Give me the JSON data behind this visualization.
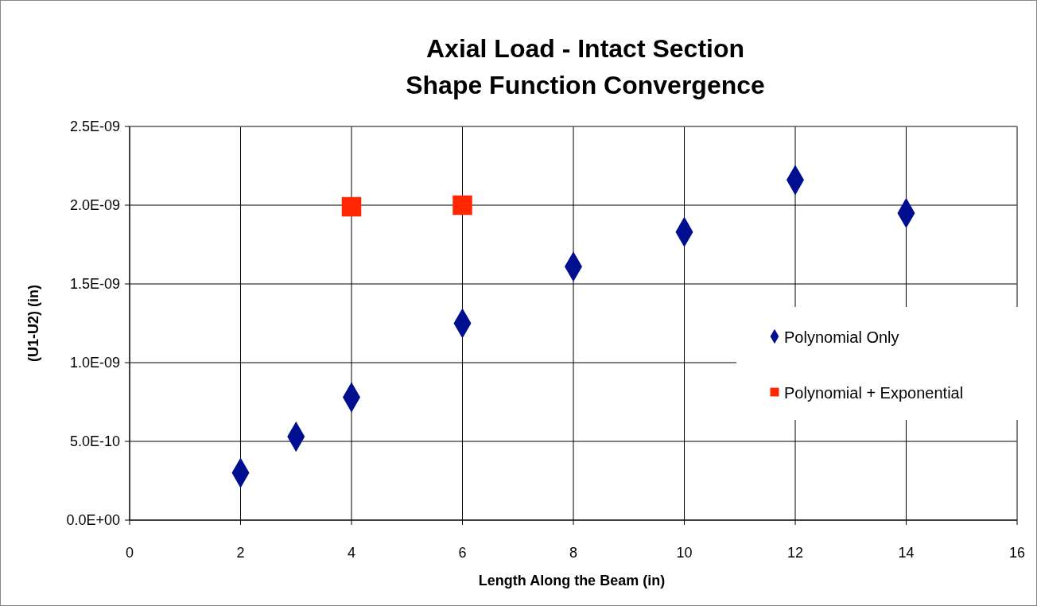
{
  "chart_data": {
    "type": "scatter",
    "title": "Axial Load - Intact Section\nShape Function Convergence",
    "xlabel": "Length Along the Beam (in)",
    "ylabel": "(U1-U2) (in)",
    "xlim": [
      0,
      16
    ],
    "xticks": [
      0,
      2,
      4,
      6,
      8,
      10,
      12,
      14,
      16
    ],
    "ylim": [
      0,
      2.5e-09
    ],
    "yticks": [
      {
        "value": 0,
        "label": "0.0E+00"
      },
      {
        "value": 5e-10,
        "label": "5.0E-10"
      },
      {
        "value": 1e-09,
        "label": "1.0E-09"
      },
      {
        "value": 1.5e-09,
        "label": "1.5E-09"
      },
      {
        "value": 2e-09,
        "label": "2.0E-09"
      },
      {
        "value": 2.5e-09,
        "label": "2.5E-09"
      }
    ],
    "grid": true,
    "legend": "right",
    "series": [
      {
        "name": "Polynomial Only",
        "color": "#000f8f",
        "marker": "diamond",
        "x": [
          2,
          3,
          4,
          6,
          8,
          10,
          12,
          14
        ],
        "values": [
          3e-10,
          5.3e-10,
          7.8e-10,
          1.25e-09,
          1.61e-09,
          1.83e-09,
          2.16e-09,
          1.95e-09
        ]
      },
      {
        "name": "Polynomial + Exponential",
        "color": "#ff2600",
        "marker": "square",
        "x": [
          4,
          6
        ],
        "values": [
          1.99e-09,
          2e-09
        ]
      }
    ]
  }
}
